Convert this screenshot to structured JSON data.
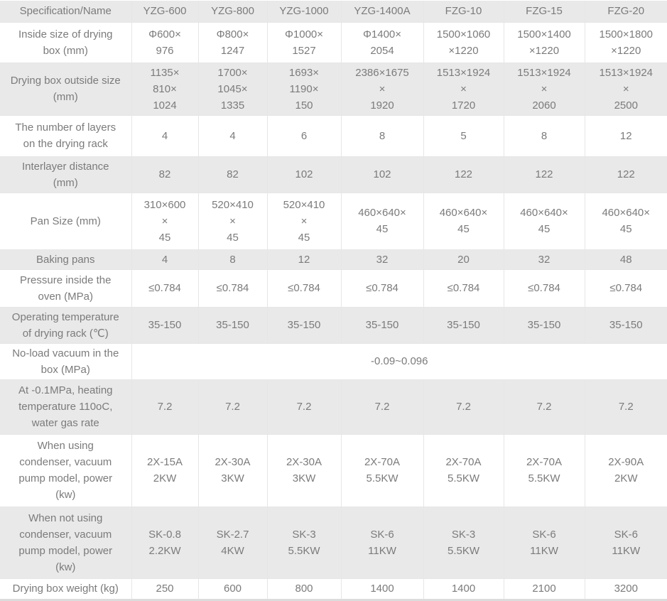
{
  "table": {
    "header": {
      "cells": [
        "Specification/Name",
        "YZG-600",
        "YZG-800",
        "YZG-1000",
        "YZG-1400A",
        "FZG-10",
        "FZG-15",
        "FZG-20"
      ]
    },
    "rows": [
      {
        "label": "Inside size of drying\nbox (mm)",
        "values": [
          "Φ600×\n976",
          "Φ800×\n1247",
          "Φ1000×\n1527",
          "Φ1400×\n2054",
          "1500×1060\n×1220",
          "1500×1400\n×1220",
          "1500×1800\n×1220"
        ]
      },
      {
        "label": "Drying box outside size\n(mm)",
        "values": [
          "1135×\n810×\n1024",
          "1700×\n1045×\n1335",
          "1693×\n1190×\n150",
          "2386×1675\n×\n1920",
          "1513×1924\n×\n1720",
          "1513×1924\n×\n2060",
          "1513×1924\n×\n2500"
        ]
      },
      {
        "label": "The number of layers\non the drying rack",
        "values": [
          "4",
          "4",
          "6",
          "8",
          "5",
          "8",
          "12"
        ]
      },
      {
        "label": "Interlayer distance\n(mm)",
        "values": [
          "82",
          "82",
          "102",
          "102",
          "122",
          "122",
          "122"
        ]
      },
      {
        "label": "Pan Size (mm)",
        "values": [
          "310×600\n×\n45",
          "520×410\n×\n45",
          "520×410\n×\n45",
          "460×640×\n45",
          "460×640×\n45",
          "460×640×\n45",
          "460×640×\n45"
        ]
      },
      {
        "label": "Baking pans",
        "values": [
          "4",
          "8",
          "12",
          "32",
          "20",
          "32",
          "48"
        ]
      },
      {
        "label": "Pressure inside the\noven (MPa)",
        "values": [
          "≤0.784",
          "≤0.784",
          "≤0.784",
          "≤0.784",
          "≤0.784",
          "≤0.784",
          "≤0.784"
        ]
      },
      {
        "label": "Operating temperature\nof drying rack (℃)",
        "values": [
          "35-150",
          "35-150",
          "35-150",
          "35-150",
          "35-150",
          "35-150",
          "35-150"
        ]
      },
      {
        "label": "No-load vacuum in the\nbox (MPa)",
        "merged": "-0.09~0.096"
      },
      {
        "label": "At -0.1MPa, heating\ntemperature 110oC,\nwater gas rate",
        "values": [
          "7.2",
          "7.2",
          "7.2",
          "7.2",
          "7.2",
          "7.2",
          "7.2"
        ]
      },
      {
        "label": "When using\ncondenser, vacuum\npump model, power\n(kw)",
        "values": [
          "2X-15A\n2KW",
          "2X-30A\n3KW",
          "2X-30A\n3KW",
          "2X-70A\n5.5KW",
          "2X-70A\n5.5KW",
          "2X-70A\n5.5KW",
          "2X-90A\n2KW"
        ]
      },
      {
        "label": "When not using\ncondenser, vacuum\npump model, power\n(kw)",
        "values": [
          "SK-0.8\n2.2KW",
          "SK-2.7\n4KW",
          "SK-3\n5.5KW",
          "SK-6\n11KW",
          "SK-3\n5.5KW",
          "SK-6\n11KW",
          "SK-6\n11KW"
        ]
      },
      {
        "label": "Drying box weight (kg)",
        "values": [
          "250",
          "600",
          "800",
          "1400",
          "1400",
          "2100",
          "3200"
        ]
      }
    ]
  },
  "colors": {
    "stripe": "#e9e9e9",
    "border": "#e6e6e6",
    "text": "#7b7b7b"
  }
}
